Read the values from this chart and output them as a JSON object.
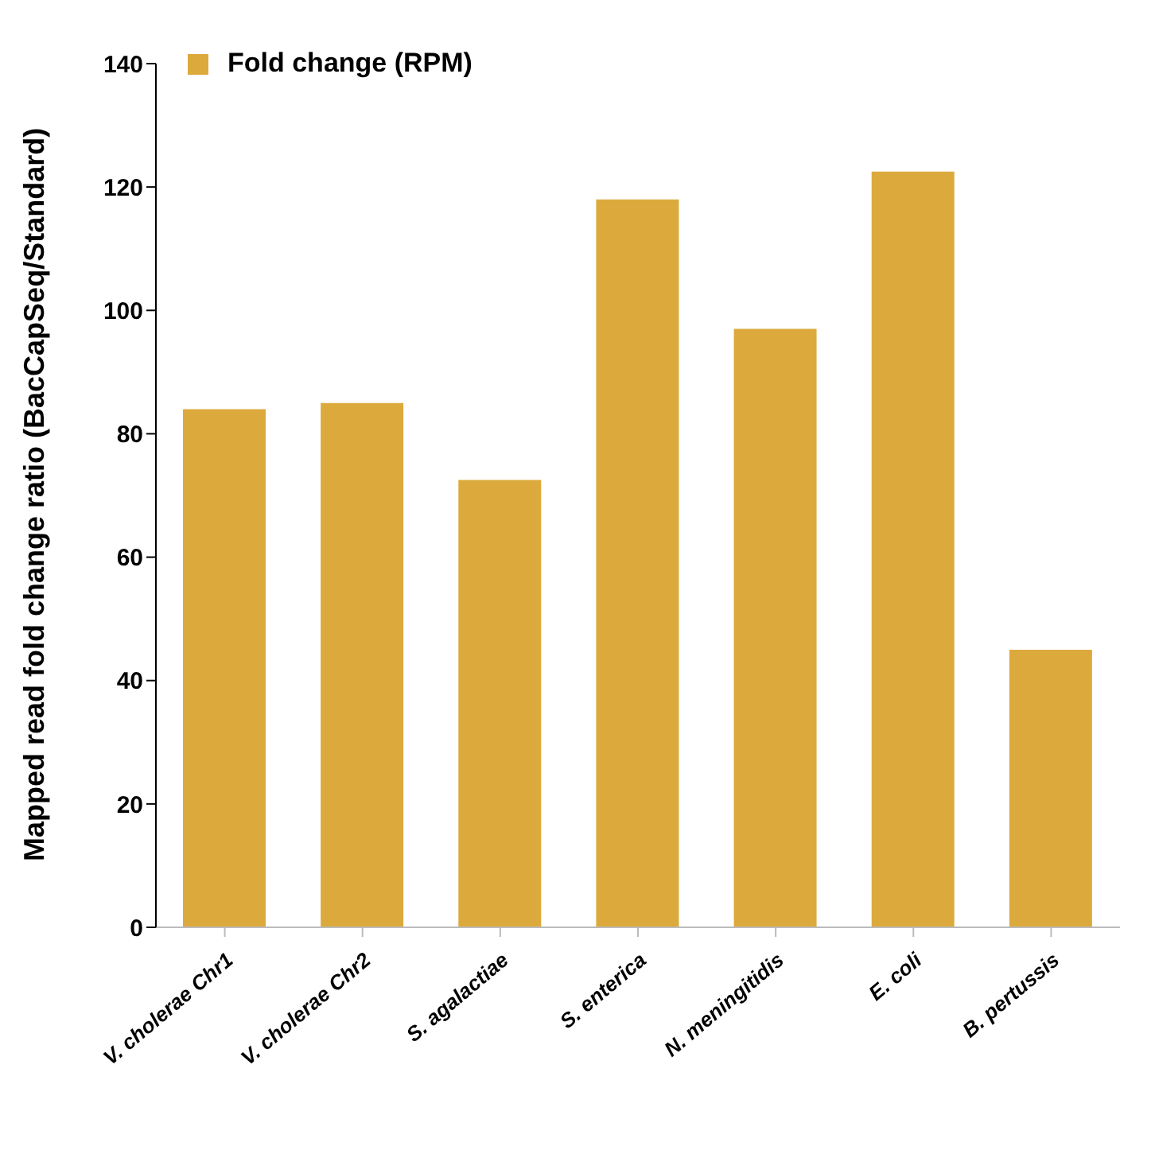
{
  "chart_data": {
    "type": "bar",
    "ylabel": "Mapped read fold change ratio (BacCapSeq/Standard)",
    "categories": [
      "V. cholerae Chr1",
      "V. cholerae Chr2",
      "S. agalactiae",
      "S. enterica",
      "N. meningitidis",
      "E. coli",
      "B. pertussis"
    ],
    "series": [
      {
        "name": "Fold change (RPM)",
        "color": "#dcaa3c",
        "values": [
          84,
          85,
          72.5,
          118,
          97,
          122.5,
          45
        ]
      }
    ],
    "ylim": [
      0,
      140
    ],
    "yticks": [
      0,
      20,
      40,
      60,
      80,
      100,
      120,
      140
    ],
    "grid": false,
    "legend": "top left"
  }
}
